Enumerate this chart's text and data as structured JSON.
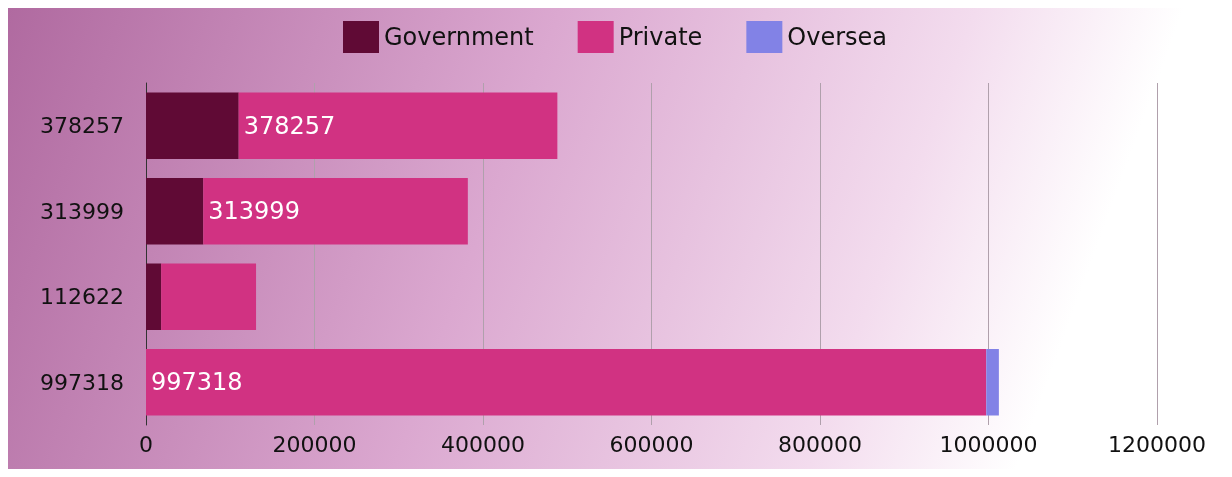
{
  "chart_data": {
    "type": "bar",
    "orientation": "horizontal",
    "stacked": true,
    "categories": [
      "378257",
      "313999",
      "112622",
      "997318"
    ],
    "series": [
      {
        "name": "Government",
        "color": "#600a35",
        "values": [
          110000,
          68000,
          18000,
          0
        ]
      },
      {
        "name": "Private",
        "color": "#d13282",
        "values": [
          378257,
          313999,
          112622,
          997318
        ],
        "value_labels": [
          "378257",
          "313999",
          null,
          "997318"
        ]
      },
      {
        "name": "Oversea",
        "color": "#8282e6",
        "values": [
          0,
          0,
          0,
          15000
        ]
      }
    ],
    "xlim": [
      0,
      1200000
    ],
    "xticks": [
      0,
      200000,
      400000,
      600000,
      800000,
      1000000,
      1200000
    ],
    "grid": "x",
    "legend": "top"
  }
}
